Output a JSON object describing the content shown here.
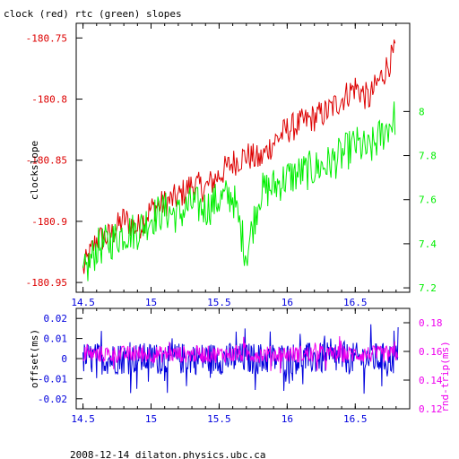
{
  "title": "clock (red) rtc (green) slopes",
  "footer": "2008-12-14  dilaton.physics.ubc.ca",
  "colors": {
    "red": "#dd0000",
    "green": "#00ee00",
    "blue": "#0000dd",
    "magenta": "#ee00ee",
    "frame": "#000000"
  },
  "chart_data": [
    {
      "type": "line",
      "ylabel": "clockslope",
      "xlim": [
        14.45,
        16.9
      ],
      "ylim_left": [
        -180.958,
        -180.738
      ],
      "ylim_right": [
        7.18,
        8.4
      ],
      "x_ticks": [
        "14.5",
        "15",
        "15.5",
        "16",
        "16.5"
      ],
      "y_ticks_left": [
        "-180.75",
        "-180.8",
        "-180.85",
        "-180.9",
        "-180.95"
      ],
      "y_ticks_right": [
        "8",
        "7.8",
        "7.6",
        "7.4",
        "7.2"
      ],
      "series": [
        {
          "axis": "left",
          "color": "red",
          "x": [
            14.5,
            14.6,
            14.7,
            14.8,
            14.9,
            15.0,
            15.1,
            15.2,
            15.3,
            15.4,
            15.5,
            15.6,
            15.7,
            15.8,
            15.9,
            16.0,
            16.1,
            16.2,
            16.3,
            16.4,
            16.5,
            16.6,
            16.7,
            16.8
          ],
          "y": [
            -180.94,
            -180.915,
            -180.912,
            -180.898,
            -180.906,
            -180.89,
            -180.885,
            -180.88,
            -180.87,
            -180.873,
            -180.862,
            -180.852,
            -180.846,
            -180.85,
            -180.835,
            -180.825,
            -180.82,
            -180.815,
            -180.81,
            -180.8,
            -180.79,
            -180.8,
            -180.78,
            -180.76
          ]
        },
        {
          "axis": "right",
          "color": "green",
          "x": [
            14.5,
            14.6,
            14.7,
            14.8,
            14.9,
            15.0,
            15.1,
            15.2,
            15.3,
            15.4,
            15.5,
            15.6,
            15.7,
            15.8,
            15.9,
            16.0,
            16.1,
            16.2,
            16.3,
            16.4,
            16.5,
            16.6,
            16.7,
            16.8
          ],
          "y": [
            7.25,
            7.38,
            7.41,
            7.45,
            7.46,
            7.52,
            7.55,
            7.53,
            7.58,
            7.56,
            7.6,
            7.62,
            7.35,
            7.63,
            7.66,
            7.7,
            7.72,
            7.74,
            7.76,
            7.8,
            7.85,
            7.82,
            7.9,
            7.98
          ]
        }
      ]
    },
    {
      "type": "line",
      "ylabel_left": "offset(ms)",
      "ylabel_right": "rnd-trip(ms)",
      "xlim": [
        14.45,
        16.9
      ],
      "ylim_left": [
        -0.025,
        0.025
      ],
      "ylim_right": [
        0.12,
        0.19
      ],
      "x_ticks": [
        "14.5",
        "15",
        "15.5",
        "16",
        "16.5"
      ],
      "y_ticks_left": [
        "0.02",
        "0.01",
        "0",
        "-0.01",
        "-0.02"
      ],
      "y_ticks_right": [
        "0.18",
        "0.16",
        "0.14",
        "0.12"
      ],
      "series": [
        {
          "axis": "left",
          "color": "blue",
          "mean": 0.0,
          "spread": 0.008
        },
        {
          "axis": "right",
          "color": "magenta",
          "mean": 0.158,
          "spread": 0.006
        }
      ]
    }
  ]
}
